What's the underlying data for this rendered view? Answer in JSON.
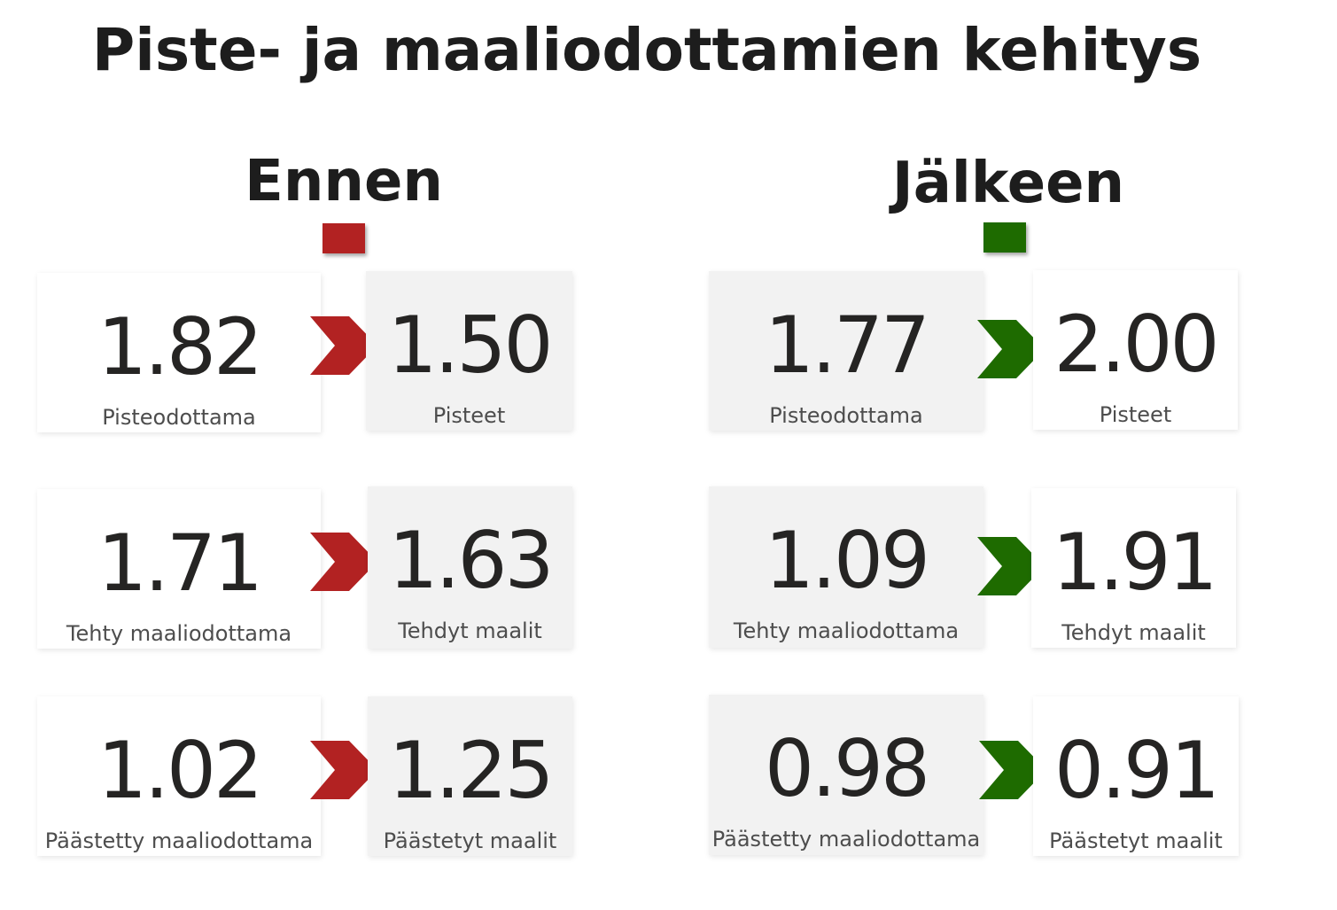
{
  "title": "Piste- ja maaliodottamien kehitys",
  "colors": {
    "before": "#b22222",
    "after": "#1e6b00",
    "card_white": "#ffffff",
    "card_grey": "#f2f2f2"
  },
  "before": {
    "heading": "Ennen",
    "rows": [
      {
        "expected_value": "1.82",
        "expected_label": "Pisteodottama",
        "actual_value": "1.50",
        "actual_label": "Pisteet"
      },
      {
        "expected_value": "1.71",
        "expected_label": "Tehty maaliodottama",
        "actual_value": "1.63",
        "actual_label": "Tehdyt maalit"
      },
      {
        "expected_value": "1.02",
        "expected_label": "Päästetty maaliodottama",
        "actual_value": "1.25",
        "actual_label": "Päästetyt maalit"
      }
    ]
  },
  "after": {
    "heading": "Jälkeen",
    "rows": [
      {
        "expected_value": "1.77",
        "expected_label": "Pisteodottama",
        "actual_value": "2.00",
        "actual_label": "Pisteet"
      },
      {
        "expected_value": "1.09",
        "expected_label": "Tehty maaliodottama",
        "actual_value": "1.91",
        "actual_label": "Tehdyt maalit"
      },
      {
        "expected_value": "0.98",
        "expected_label": "Päästetty maaliodottama",
        "actual_value": "0.91",
        "actual_label": "Päästetyt maalit"
      }
    ]
  }
}
